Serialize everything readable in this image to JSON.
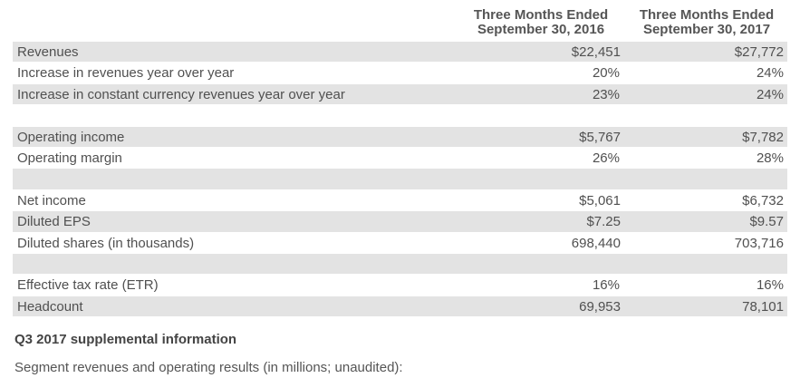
{
  "header": {
    "col1_line1": "Three Months Ended",
    "col1_line2": "September 30, 2016",
    "col2_line1": "Three Months Ended",
    "col2_line2": "September 30, 2017"
  },
  "rows": [
    {
      "label": "Revenues",
      "v2016": "$22,451",
      "v2017": "$27,772"
    },
    {
      "label": "Increase in revenues year over year",
      "v2016": "20%",
      "v2017": "24%"
    },
    {
      "label": "Increase in constant currency revenues year over year",
      "v2016": "23%",
      "v2017": "24%"
    },
    {
      "label": "Operating income",
      "v2016": "$5,767",
      "v2017": "$7,782"
    },
    {
      "label": "Operating margin",
      "v2016": "26%",
      "v2017": "28%"
    },
    {
      "label": "Net income",
      "v2016": "$5,061",
      "v2017": "$6,732"
    },
    {
      "label": "Diluted EPS",
      "v2016": "$7.25",
      "v2017": "$9.57"
    },
    {
      "label": "Diluted shares (in thousands)",
      "v2016": "698,440",
      "v2017": "703,716"
    },
    {
      "label": "Effective tax rate (ETR)",
      "v2016": "16%",
      "v2017": "16%"
    },
    {
      "label": "Headcount",
      "v2016": "69,953",
      "v2017": "78,101"
    }
  ],
  "supplemental": {
    "title": "Q3 2017 supplemental information",
    "text": "Segment revenues and operating results (in millions; unaudited):"
  },
  "colors": {
    "row_shade": "#e3e3e3",
    "text": "#505050"
  }
}
